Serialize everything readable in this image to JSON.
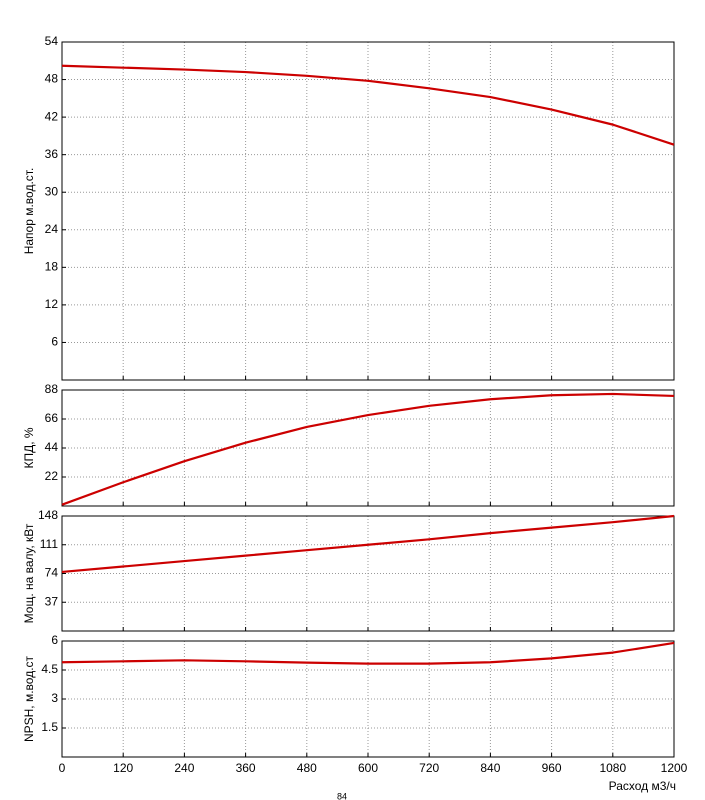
{
  "chart_data": [
    {
      "type": "line",
      "ylabel": "Напор м.вод.ст.",
      "x": [
        0,
        120,
        240,
        360,
        480,
        600,
        720,
        840,
        960,
        1080,
        1200
      ],
      "series": [
        {
          "color": "#cc0000",
          "values": [
            50.2,
            49.9,
            49.6,
            49.2,
            48.6,
            47.8,
            46.6,
            45.2,
            43.2,
            40.8,
            37.6
          ]
        }
      ],
      "xlim": [
        0,
        1200
      ],
      "xticks": [
        0,
        120,
        240,
        360,
        480,
        600,
        720,
        840,
        960,
        1080,
        1200
      ],
      "ylim": [
        0,
        54
      ],
      "yticks": [
        6,
        12,
        18,
        24,
        30,
        36,
        42,
        48,
        54
      ],
      "grid": true
    },
    {
      "type": "line",
      "ylabel": "КПД, %",
      "x": [
        0,
        120,
        240,
        360,
        480,
        600,
        720,
        840,
        960,
        1080,
        1200
      ],
      "series": [
        {
          "color": "#cc0000",
          "values": [
            1,
            18,
            34,
            48,
            60,
            69,
            76,
            81,
            84,
            85,
            83.5
          ]
        }
      ],
      "xlim": [
        0,
        1200
      ],
      "xticks": [
        0,
        120,
        240,
        360,
        480,
        600,
        720,
        840,
        960,
        1080,
        1200
      ],
      "ylim": [
        0,
        88
      ],
      "yticks": [
        22,
        44,
        66,
        88
      ],
      "grid": true
    },
    {
      "type": "line",
      "ylabel": "Мощ. на валу, кВт",
      "x": [
        0,
        120,
        240,
        360,
        480,
        600,
        720,
        840,
        960,
        1080,
        1200
      ],
      "series": [
        {
          "color": "#cc0000",
          "values": [
            76,
            83,
            90,
            97,
            104,
            111,
            118,
            126,
            133,
            140,
            148
          ]
        }
      ],
      "xlim": [
        0,
        1200
      ],
      "xticks": [
        0,
        120,
        240,
        360,
        480,
        600,
        720,
        840,
        960,
        1080,
        1200
      ],
      "ylim": [
        0,
        148
      ],
      "yticks": [
        37,
        74,
        111,
        148
      ],
      "grid": true
    },
    {
      "type": "line",
      "ylabel": "NPSH, м.вод.ст",
      "xlabel": "Расход м3/ч",
      "note": "84",
      "x": [
        0,
        120,
        240,
        360,
        480,
        600,
        720,
        840,
        960,
        1080,
        1200
      ],
      "series": [
        {
          "color": "#cc0000",
          "values": [
            4.9,
            4.95,
            5.0,
            4.95,
            4.88,
            4.83,
            4.83,
            4.9,
            5.1,
            5.4,
            5.9
          ]
        }
      ],
      "xlim": [
        0,
        1200
      ],
      "xticks": [
        0,
        120,
        240,
        360,
        480,
        600,
        720,
        840,
        960,
        1080,
        1200
      ],
      "ylim": [
        0,
        6
      ],
      "yticks": [
        1.5,
        3,
        4.5,
        6
      ],
      "grid": true,
      "xticklabels": true
    }
  ]
}
